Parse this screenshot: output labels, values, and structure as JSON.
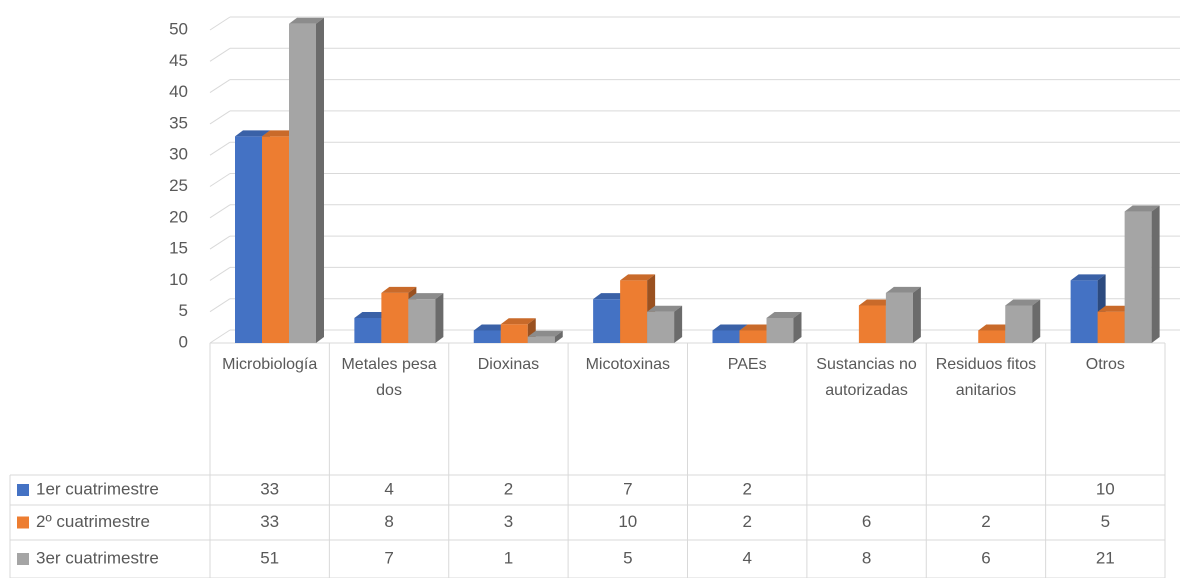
{
  "chart_data": {
    "type": "bar3d",
    "categories": [
      "Microbiología",
      "Metales pesados",
      "Dioxinas",
      "Micotoxinas",
      "PAEs",
      "Sustancias no autorizadas",
      "Residuos fitosanitarios",
      "Otros"
    ],
    "series": [
      {
        "name": "1er cuatrimestre",
        "color": "#4472c4",
        "values": [
          33,
          4,
          2,
          7,
          2,
          null,
          null,
          10
        ]
      },
      {
        "name": "2º cuatrimestre",
        "color": "#ed7d31",
        "values": [
          33,
          8,
          3,
          10,
          2,
          6,
          2,
          5
        ]
      },
      {
        "name": "3er cuatrimestre",
        "color": "#a5a5a5",
        "values": [
          51,
          7,
          1,
          5,
          4,
          8,
          6,
          21
        ]
      }
    ],
    "ylim": [
      0,
      50
    ],
    "yticks": [
      0,
      5,
      10,
      15,
      20,
      25,
      30,
      35,
      40,
      45,
      50
    ],
    "grid": true,
    "data_table": true
  }
}
